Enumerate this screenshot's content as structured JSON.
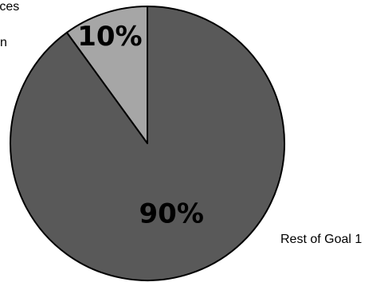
{
  "chart_data": {
    "type": "pie",
    "categories": [
      "Resources",
      "Rest of Goal 1"
    ],
    "values": [
      10,
      90
    ],
    "colors": [
      "#a6a6a6",
      "#595959"
    ],
    "data_labels": [
      "10%",
      "90%"
    ],
    "partial_texts": {
      "top_left_line1": "rces",
      "top_left_line2": "n"
    },
    "title": "",
    "start_angle_deg": 0,
    "direction": "counterclockwise"
  }
}
